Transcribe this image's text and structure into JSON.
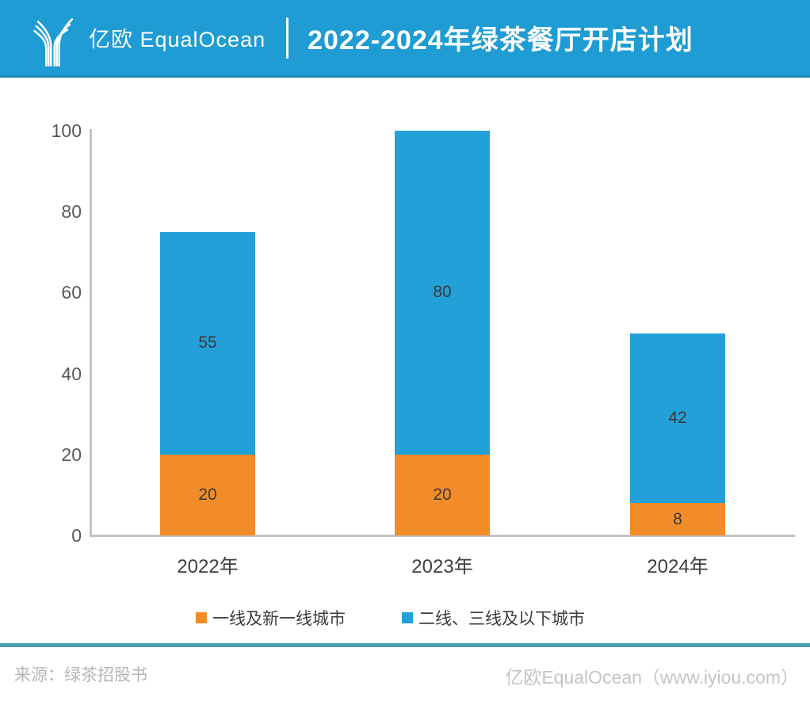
{
  "header": {
    "logo_text": "亿欧 EqualOcean",
    "title": "2022-2024年绿茶餐厅开店计划"
  },
  "colors": {
    "banner": "#1E9CD3",
    "bar_blue": "#23A0D8",
    "bar_orange": "#F18C28",
    "axis": "#C2C2C2",
    "teal_divider": "#4CA1AE"
  },
  "chart_data": {
    "type": "bar",
    "stacked": true,
    "title": "2022-2024年绿茶餐厅开店计划",
    "categories": [
      "2022年",
      "2023年",
      "2024年"
    ],
    "series": [
      {
        "name": "一线及新一线城市",
        "color": "#F18C28",
        "values": [
          20,
          20,
          8
        ]
      },
      {
        "name": "二线、三线及以下城市",
        "color": "#23A0D8",
        "values": [
          55,
          80,
          42
        ]
      }
    ],
    "totals": [
      75,
      100,
      50
    ],
    "yticks": [
      0,
      20,
      40,
      60,
      80,
      100
    ],
    "ylim": [
      0,
      100
    ],
    "xlabel": "",
    "ylabel": "",
    "grid": false,
    "legend_position": "bottom"
  },
  "footer": {
    "source": "来源：绿茶招股书",
    "brand": "亿欧EqualOcean（www.iyiou.com）"
  }
}
